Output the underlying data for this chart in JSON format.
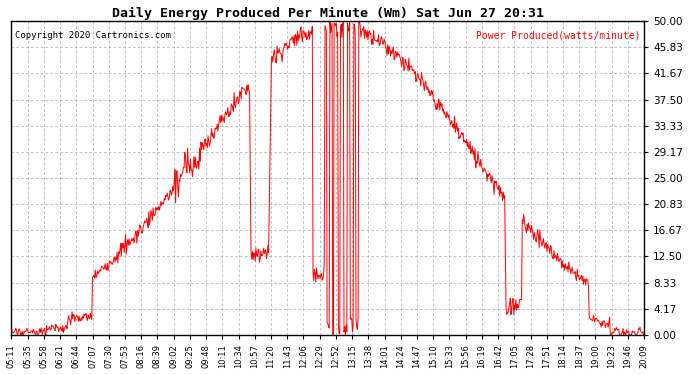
{
  "title": "Daily Energy Produced Per Minute (Wm) Sat Jun 27 20:31",
  "copyright": "Copyright 2020 Cartronics.com",
  "legend_label": "Power Produced(watts/minute)",
  "y_max": 50.0,
  "y_ticks": [
    0.0,
    4.17,
    8.33,
    12.5,
    16.67,
    20.83,
    25.0,
    29.17,
    33.33,
    37.5,
    41.67,
    45.83,
    50.0
  ],
  "line_color": "red",
  "background_color": "#ffffff",
  "grid_color": "#aaaaaa",
  "title_color": "black",
  "copyright_color": "black",
  "legend_color": "red",
  "x_tick_labels": [
    "05:11",
    "05:35",
    "05:58",
    "06:21",
    "06:44",
    "07:07",
    "07:30",
    "07:53",
    "08:16",
    "08:39",
    "09:02",
    "09:25",
    "09:48",
    "10:11",
    "10:34",
    "10:57",
    "11:20",
    "11:43",
    "12:06",
    "12:29",
    "12:52",
    "13:15",
    "13:38",
    "14:01",
    "14:24",
    "14:47",
    "15:10",
    "15:33",
    "15:56",
    "16:19",
    "16:42",
    "17:05",
    "17:28",
    "17:51",
    "18:14",
    "18:37",
    "19:00",
    "19:23",
    "19:46",
    "20:09"
  ],
  "figwidth": 6.9,
  "figheight": 3.75,
  "dpi": 100
}
